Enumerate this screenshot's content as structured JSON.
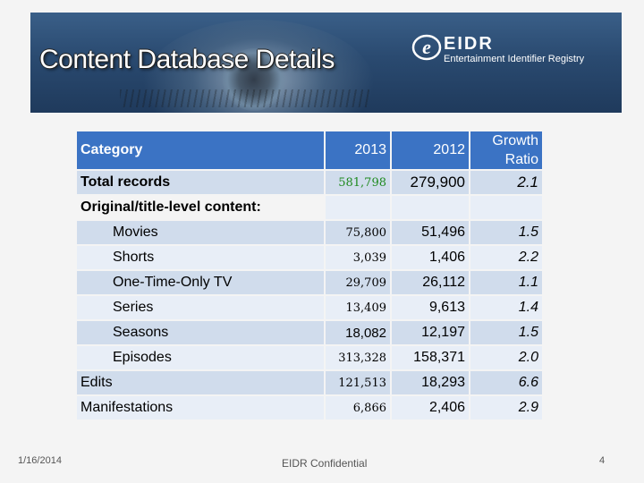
{
  "slide": {
    "title": "Content Database Details",
    "logo": {
      "mark": "e",
      "name": "EIDR",
      "tagline": "Entertainment Identifier Registry"
    },
    "footer": {
      "date": "1/16/2014",
      "confidential": "EIDR Confidential",
      "page": "4"
    }
  },
  "table": {
    "headers": {
      "category": "Category",
      "y2013": "2013",
      "y2012": "2012",
      "growth_1": "Growth",
      "growth_2": "Ratio"
    },
    "rows": [
      {
        "category": "Total records",
        "y2013": "581,798",
        "y2012": "279,900",
        "growth": "2.1"
      },
      {
        "category": "Original/title-level content:",
        "y2013": "",
        "y2012": "",
        "growth": ""
      },
      {
        "category": "Movies",
        "y2013": "75,800",
        "y2012": "51,496",
        "growth": "1.5"
      },
      {
        "category": "Shorts",
        "y2013": "3,039",
        "y2012": "1,406",
        "growth": "2.2"
      },
      {
        "category": "One-Time-Only TV",
        "y2013": "29,709",
        "y2012": "26,112",
        "growth": "1.1"
      },
      {
        "category": "Series",
        "y2013": "13,409",
        "y2012": "9,613",
        "growth": "1.4"
      },
      {
        "category": "Seasons",
        "y2013": "18,082",
        "y2012": "12,197",
        "growth": "1.5"
      },
      {
        "category": "Episodes",
        "y2013": "313,328",
        "y2012": "158,371",
        "growth": "2.0"
      },
      {
        "category": "Edits",
        "y2013": "121,513",
        "y2012": "18,293",
        "growth": "6.6"
      },
      {
        "category": "Manifestations",
        "y2013": "6,866",
        "y2012": "2,406",
        "growth": "2.9"
      }
    ]
  },
  "colors": {
    "header": "#3b73c4",
    "row_shade": "#d0dcec",
    "row_light": "#e8eef7",
    "highlight": "#1f8a1f"
  }
}
